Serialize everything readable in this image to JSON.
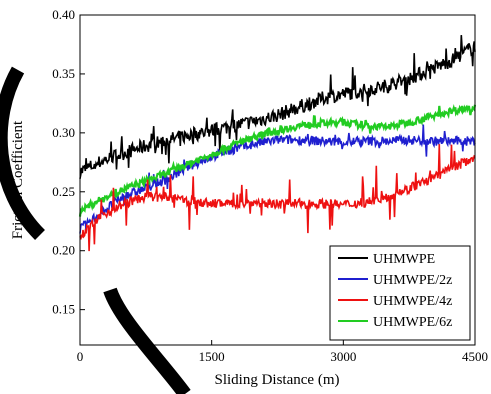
{
  "chart_data": {
    "type": "line",
    "xlabel": "Sliding Distance (m)",
    "ylabel": "Friction Coefficient",
    "xlim": [
      0,
      4500
    ],
    "ylim": [
      0.12,
      0.4
    ],
    "xticks": [
      0,
      1500,
      3000,
      4500
    ],
    "xtick_labels": [
      "0",
      "1500",
      "3000",
      "4500"
    ],
    "yticks": [
      0.15,
      0.2,
      0.25,
      0.3,
      0.35,
      0.4
    ],
    "ytick_labels": [
      "0.15",
      "0.20",
      "0.25",
      "0.30",
      "0.35",
      "0.40"
    ],
    "grid": false,
    "legend_position": "bottom-right",
    "series": [
      {
        "name": "UHMWPE",
        "color": "#000000",
        "x": [
          0,
          250,
          500,
          750,
          1000,
          1250,
          1500,
          1750,
          2000,
          2250,
          2500,
          2750,
          3000,
          3250,
          3500,
          3750,
          4000,
          4250,
          4500
        ],
        "y": [
          0.267,
          0.276,
          0.283,
          0.289,
          0.294,
          0.298,
          0.302,
          0.306,
          0.31,
          0.315,
          0.322,
          0.329,
          0.333,
          0.336,
          0.34,
          0.346,
          0.354,
          0.362,
          0.374
        ]
      },
      {
        "name": "UHMWPE/2z",
        "color": "#1f1fcf",
        "x": [
          0,
          250,
          500,
          750,
          1000,
          1250,
          1500,
          1750,
          2000,
          2250,
          2500,
          2750,
          3000,
          3250,
          3500,
          3750,
          4000,
          4250,
          4500
        ],
        "y": [
          0.218,
          0.233,
          0.246,
          0.253,
          0.261,
          0.272,
          0.28,
          0.286,
          0.291,
          0.294,
          0.294,
          0.293,
          0.292,
          0.293,
          0.293,
          0.294,
          0.293,
          0.293,
          0.293
        ]
      },
      {
        "name": "UHMWPE/4z",
        "color": "#ee1111",
        "x": [
          0,
          250,
          500,
          750,
          1000,
          1250,
          1500,
          1750,
          2000,
          2250,
          2500,
          2750,
          3000,
          3250,
          3500,
          3750,
          4000,
          4250,
          4500
        ],
        "y": [
          0.213,
          0.23,
          0.24,
          0.246,
          0.245,
          0.242,
          0.24,
          0.24,
          0.241,
          0.24,
          0.24,
          0.24,
          0.239,
          0.241,
          0.246,
          0.253,
          0.261,
          0.27,
          0.28
        ]
      },
      {
        "name": "UHMWPE/6z",
        "color": "#22cc22",
        "x": [
          0,
          250,
          500,
          750,
          1000,
          1250,
          1500,
          1750,
          2000,
          2250,
          2500,
          2750,
          3000,
          3250,
          3500,
          3750,
          4000,
          4250,
          4500
        ],
        "y": [
          0.234,
          0.244,
          0.252,
          0.259,
          0.266,
          0.274,
          0.282,
          0.29,
          0.297,
          0.302,
          0.306,
          0.308,
          0.309,
          0.306,
          0.305,
          0.309,
          0.314,
          0.319,
          0.322
        ]
      }
    ]
  }
}
